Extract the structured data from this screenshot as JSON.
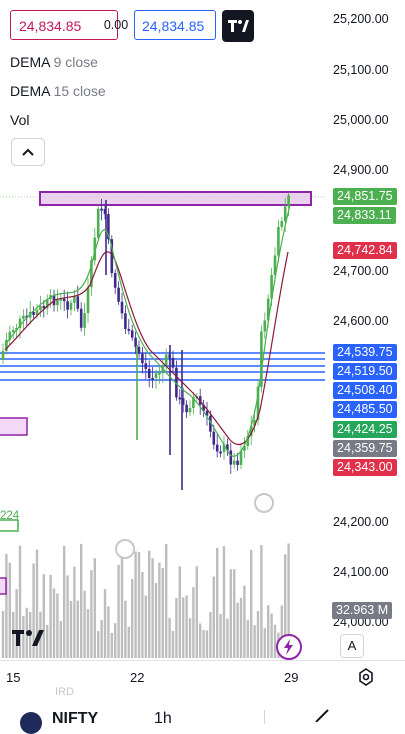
{
  "top_bar": {
    "bid_value": "24,834.85",
    "spread_value": "0.00",
    "ask_value": "24,834.85"
  },
  "legend": {
    "dema9_label": "DEMA",
    "dema9_value": "9 close",
    "dema15_label": "DEMA",
    "dema15_value": "15 close",
    "vol_label": "Vol"
  },
  "price_scale": {
    "ticks": [
      "25,200.00",
      "25,100.00",
      "25,000.00",
      "24,900.00",
      "24,700.00",
      "24,600.00",
      "24,200.00",
      "24,100.00",
      "24,000.00"
    ],
    "labels": [
      {
        "text": "24,851.75",
        "color": "#4caf50"
      },
      {
        "text": "24,833.11",
        "color": "#4caf50"
      },
      {
        "text": "24,742.84",
        "color": "#e0304a"
      },
      {
        "text": "24,539.75",
        "color": "#2962ff"
      },
      {
        "text": "24,519.50",
        "color": "#2962ff"
      },
      {
        "text": "24,508.40",
        "color": "#2962ff"
      },
      {
        "text": "24,485.50",
        "color": "#2962ff"
      },
      {
        "text": "24,424.25",
        "color": "#26a65b"
      },
      {
        "text": "24,359.75",
        "color": "#787b86"
      },
      {
        "text": "24,343.00",
        "color": "#e0304a"
      }
    ],
    "volume_label": "32.963 M",
    "auto_label": "A",
    "left_box_value": "224"
  },
  "time_axis": {
    "ticks": [
      "15",
      "22",
      "29"
    ]
  },
  "bottom": {
    "partial_text": "IRD",
    "symbol_partial": "NIFTY",
    "interval_partial": "1h"
  },
  "colors": {
    "bull": "#4caf50",
    "bear": "#3f2a8c",
    "dema9": "#4caf50",
    "dema15": "#8b1a3a",
    "zone_purple": "#9c27b0",
    "zone_blue": "#2962ff"
  },
  "icons": {
    "logo": "tradingview-logo-icon",
    "collapse": "chevron-up-icon",
    "alert": "lightning-icon",
    "settings": "gear-icon"
  }
}
